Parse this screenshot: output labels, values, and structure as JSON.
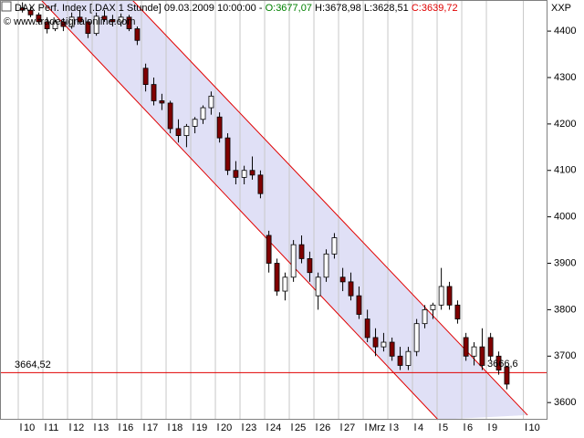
{
  "chart_data": {
    "type": "candlestick",
    "header": {
      "instrument": "DAX Perf. Index [.DAX  1 Stunde] 09.03.2009 10:00:00 -",
      "open": "O:3677,07",
      "high_low": "H:3678,98 L:3628,51",
      "close": "C:3639,72",
      "source": "© www.tradesignalonline.com",
      "corner": "XXP"
    },
    "up_color": "#ffffff",
    "down_color": "#800000",
    "channel_color": "#d8d8f4",
    "line_color": "#e00000",
    "xlim": [
      -0.741,
      21.48
    ],
    "ylim": [
      3563,
      4467
    ],
    "yticks": [
      3600,
      3700,
      3800,
      3900,
      4000,
      4100,
      4200,
      4300,
      4400
    ],
    "xticks": [
      {
        "value": 0,
        "label": "10"
      },
      {
        "value": 1,
        "label": "11"
      },
      {
        "value": 2,
        "label": "12"
      },
      {
        "value": 3,
        "label": "13"
      },
      {
        "value": 4,
        "label": "16"
      },
      {
        "value": 5,
        "label": "17"
      },
      {
        "value": 6,
        "label": "18"
      },
      {
        "value": 7,
        "label": "19"
      },
      {
        "value": 8,
        "label": "20"
      },
      {
        "value": 9,
        "label": "23"
      },
      {
        "value": 10,
        "label": "24"
      },
      {
        "value": 11,
        "label": "25"
      },
      {
        "value": 12,
        "label": "26"
      },
      {
        "value": 13,
        "label": "27"
      },
      {
        "value": 14,
        "label": "Mrz"
      },
      {
        "value": 15,
        "label": "3"
      },
      {
        "value": 16,
        "label": "4"
      },
      {
        "value": 17,
        "label": "5"
      },
      {
        "value": 18,
        "label": "6"
      },
      {
        "value": 19,
        "label": "9"
      },
      {
        "value": 20.5,
        "label": "10"
      }
    ],
    "channel": [
      [
        [
          4.63,
          4467
        ],
        [
          20.67,
          3573
        ]
      ],
      [
        [
          0.93,
          4467
        ],
        [
          17.04,
          3563
        ]
      ]
    ],
    "hline": {
      "value": 3664.52,
      "label": "3664,52"
    },
    "last_price": {
      "value": 3666.6,
      "label": "3666,6"
    },
    "x": [
      0.17,
      0.5,
      0.83,
      1.17,
      1.5,
      1.83,
      2.17,
      2.5,
      2.83,
      3.17,
      3.5,
      3.83,
      4.17,
      4.5,
      4.83,
      5.17,
      5.5,
      5.83,
      6.17,
      6.5,
      6.83,
      7.17,
      7.5,
      7.83,
      8.17,
      8.5,
      8.83,
      9.17,
      9.5,
      9.83,
      10.17,
      10.5,
      10.83,
      11.17,
      11.5,
      11.83,
      12.17,
      12.5,
      12.83,
      13.17,
      13.5,
      13.83,
      14.17,
      14.5,
      14.83,
      15.17,
      15.5,
      15.83,
      16.17,
      16.5,
      16.83,
      17.17,
      17.5,
      17.83,
      18.17,
      18.5,
      18.83,
      19.17,
      19.5,
      19.83
    ],
    "candles": [
      [
        4450,
        4462,
        4440,
        4445
      ],
      [
        4445,
        4452,
        4430,
        4435
      ],
      [
        4435,
        4440,
        4415,
        4420
      ],
      [
        4420,
        4430,
        4395,
        4405
      ],
      [
        4405,
        4425,
        4400,
        4420
      ],
      [
        4420,
        4428,
        4400,
        4410
      ],
      [
        4410,
        4440,
        4405,
        4430
      ],
      [
        4430,
        4445,
        4415,
        4420
      ],
      [
        4420,
        4425,
        4385,
        4395
      ],
      [
        4395,
        4440,
        4390,
        4432
      ],
      [
        4432,
        4445,
        4420,
        4425
      ],
      [
        4425,
        4435,
        4410,
        4420
      ],
      [
        4420,
        4438,
        4410,
        4430
      ],
      [
        4430,
        4435,
        4400,
        4405
      ],
      [
        4405,
        4410,
        4370,
        4380
      ],
      [
        4320,
        4330,
        4270,
        4285
      ],
      [
        4285,
        4300,
        4240,
        4250
      ],
      [
        4250,
        4265,
        4230,
        4245
      ],
      [
        4245,
        4250,
        4180,
        4190
      ],
      [
        4190,
        4210,
        4160,
        4175
      ],
      [
        4175,
        4200,
        4150,
        4195
      ],
      [
        4195,
        4215,
        4180,
        4210
      ],
      [
        4210,
        4240,
        4200,
        4235
      ],
      [
        4235,
        4270,
        4220,
        4260
      ],
      [
        4215,
        4225,
        4160,
        4170
      ],
      [
        4170,
        4180,
        4090,
        4100
      ],
      [
        4100,
        4120,
        4070,
        4085
      ],
      [
        4085,
        4110,
        4070,
        4100
      ],
      [
        4100,
        4130,
        4080,
        4090
      ],
      [
        4090,
        4100,
        4040,
        4050
      ],
      [
        3960,
        3970,
        3880,
        3900
      ],
      [
        3900,
        3910,
        3830,
        3840
      ],
      [
        3840,
        3880,
        3820,
        3870
      ],
      [
        3870,
        3950,
        3860,
        3940
      ],
      [
        3940,
        3960,
        3900,
        3910
      ],
      [
        3910,
        3925,
        3860,
        3880
      ],
      [
        3830,
        3880,
        3800,
        3870
      ],
      [
        3870,
        3930,
        3860,
        3920
      ],
      [
        3920,
        3965,
        3910,
        3955
      ],
      [
        3870,
        3890,
        3840,
        3860
      ],
      [
        3860,
        3880,
        3820,
        3830
      ],
      [
        3830,
        3850,
        3780,
        3790
      ],
      [
        3780,
        3800,
        3730,
        3740
      ],
      [
        3740,
        3760,
        3700,
        3720
      ],
      [
        3720,
        3750,
        3710,
        3730
      ],
      [
        3730,
        3740,
        3690,
        3700
      ],
      [
        3700,
        3720,
        3670,
        3680
      ],
      [
        3680,
        3720,
        3670,
        3710
      ],
      [
        3710,
        3780,
        3700,
        3770
      ],
      [
        3770,
        3810,
        3760,
        3800
      ],
      [
        3800,
        3815,
        3780,
        3810
      ],
      [
        3810,
        3890,
        3800,
        3850
      ],
      [
        3850,
        3860,
        3800,
        3810
      ],
      [
        3810,
        3820,
        3770,
        3780
      ],
      [
        3740,
        3750,
        3690,
        3700
      ],
      [
        3700,
        3730,
        3680,
        3720
      ],
      [
        3720,
        3760,
        3670,
        3680
      ],
      [
        3740,
        3750,
        3690,
        3700
      ],
      [
        3700,
        3710,
        3660,
        3670
      ],
      [
        3677.07,
        3678.98,
        3628.51,
        3639.72
      ]
    ]
  }
}
